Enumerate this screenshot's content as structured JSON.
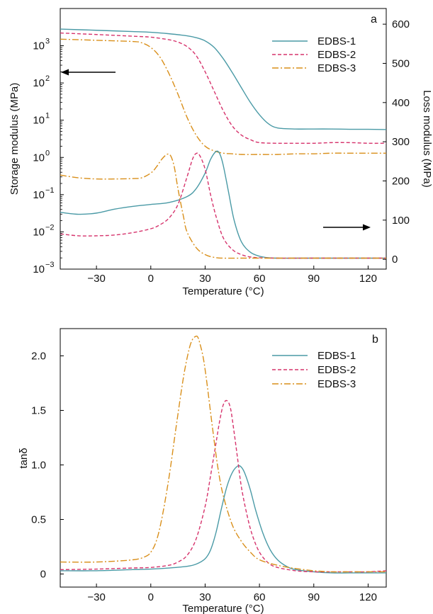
{
  "chart_data": [
    {
      "panel": "a",
      "type": "line",
      "xlabel": "Temperature (°C)",
      "ylabel_left": "Storage modulus (MPa)",
      "ylabel_right": "Loss modulus (MPa)",
      "xlim": [
        -50,
        130
      ],
      "ylim_left": [
        0.001,
        10000
      ],
      "yscale_left": "log",
      "ylim_right": [
        -25,
        640
      ],
      "xticks": [
        -30,
        0,
        30,
        60,
        90,
        120
      ],
      "xtick_labels": [
        "−30",
        "0",
        "30",
        "60",
        "90",
        "120"
      ],
      "yticks_left": [
        0.001,
        0.01,
        0.1,
        1,
        10,
        100,
        1000
      ],
      "ytick_labels_left": [
        "10",
        "10",
        "10",
        "10",
        "10",
        "10",
        "10"
      ],
      "ytick_exponents_left": [
        "−3",
        "−2",
        "−1",
        "0",
        "1",
        "2",
        "3"
      ],
      "yticks_right": [
        0,
        100,
        200,
        300,
        400,
        500,
        600
      ],
      "ytick_labels_right": [
        "0",
        "100",
        "200",
        "300",
        "400",
        "500",
        "600"
      ],
      "arrows": [
        {
          "points_to": "left axis",
          "direction": "left"
        },
        {
          "points_to": "right axis",
          "direction": "right"
        }
      ],
      "legend_placement": "top-right",
      "series": [
        {
          "name": "EDBS-1",
          "color": "#4a9aa6",
          "dash": "solid",
          "axis": "left",
          "kind": "storage",
          "x": [
            -50,
            -30,
            -10,
            0,
            10,
            20,
            25,
            30,
            35,
            40,
            45,
            50,
            55,
            60,
            65,
            70,
            80,
            90,
            100,
            110,
            120,
            130
          ],
          "y": [
            2800,
            2600,
            2400,
            2300,
            2100,
            1850,
            1650,
            1350,
            900,
            450,
            190,
            75,
            30,
            14,
            8,
            6.2,
            5.8,
            5.8,
            5.8,
            5.7,
            5.7,
            5.6
          ]
        },
        {
          "name": "EDBS-2",
          "color": "#d6336c",
          "dash": "dashed",
          "axis": "left",
          "kind": "storage",
          "x": [
            -50,
            -30,
            -10,
            0,
            10,
            15,
            20,
            25,
            30,
            35,
            40,
            45,
            50,
            55,
            60,
            70,
            80,
            90,
            100,
            110,
            120,
            130
          ],
          "y": [
            2200,
            2000,
            1800,
            1700,
            1450,
            1250,
            950,
            550,
            200,
            60,
            18,
            7,
            4,
            3,
            2.5,
            2.4,
            2.4,
            2.4,
            2.5,
            2.5,
            2.4,
            2.4
          ]
        },
        {
          "name": "EDBS-3",
          "color": "#d98f1a",
          "dash": "dashdot",
          "axis": "left",
          "kind": "storage",
          "x": [
            -50,
            -30,
            -10,
            -5,
            0,
            5,
            10,
            15,
            20,
            25,
            30,
            35,
            40,
            45,
            50,
            60,
            70,
            80,
            90,
            100,
            110,
            120,
            130
          ],
          "y": [
            1500,
            1400,
            1300,
            1200,
            900,
            500,
            180,
            50,
            12,
            4,
            2,
            1.5,
            1.3,
            1.25,
            1.2,
            1.2,
            1.2,
            1.25,
            1.25,
            1.3,
            1.3,
            1.3,
            1.3
          ]
        },
        {
          "name": "EDBS-1",
          "color": "#4a9aa6",
          "dash": "solid",
          "axis": "right",
          "kind": "loss",
          "x": [
            -50,
            -40,
            -30,
            -20,
            -10,
            0,
            10,
            20,
            25,
            30,
            33,
            36,
            38,
            40,
            43,
            46,
            50,
            55,
            60,
            65,
            70,
            80,
            100,
            130
          ],
          "y": [
            120,
            115,
            118,
            128,
            135,
            140,
            145,
            160,
            180,
            220,
            255,
            275,
            270,
            240,
            170,
            100,
            45,
            18,
            8,
            4,
            3,
            3,
            3,
            3
          ]
        },
        {
          "name": "EDBS-2",
          "color": "#d6336c",
          "dash": "dashed",
          "axis": "right",
          "kind": "loss",
          "x": [
            -50,
            -40,
            -30,
            -20,
            -10,
            0,
            5,
            10,
            15,
            20,
            23,
            25,
            27,
            30,
            33,
            36,
            40,
            45,
            50,
            55,
            60,
            70,
            90,
            130
          ],
          "y": [
            65,
            60,
            60,
            62,
            68,
            78,
            88,
            105,
            140,
            210,
            255,
            270,
            265,
            230,
            165,
            110,
            55,
            25,
            12,
            6,
            4,
            3,
            3,
            3
          ]
        },
        {
          "name": "EDBS-3",
          "color": "#d98f1a",
          "dash": "dashdot",
          "axis": "right",
          "kind": "loss",
          "x": [
            -50,
            -40,
            -30,
            -20,
            -10,
            -5,
            0,
            3,
            6,
            9,
            11,
            13,
            15,
            18,
            20,
            25,
            30,
            35,
            40,
            50,
            60,
            80,
            130
          ],
          "y": [
            215,
            208,
            205,
            205,
            206,
            208,
            220,
            235,
            255,
            268,
            264,
            235,
            180,
            110,
            70,
            30,
            12,
            5,
            3,
            3,
            3,
            3,
            3
          ]
        }
      ]
    },
    {
      "panel": "b",
      "type": "line",
      "xlabel": "Temperature (°C)",
      "ylabel": "tanδ",
      "xlim": [
        -50,
        130
      ],
      "ylim": [
        -0.12,
        2.25
      ],
      "xticks": [
        -30,
        0,
        30,
        60,
        90,
        120
      ],
      "xtick_labels": [
        "−30",
        "0",
        "30",
        "60",
        "90",
        "120"
      ],
      "yticks": [
        0,
        0.5,
        1.0,
        1.5,
        2.0
      ],
      "ytick_labels": [
        "0",
        "0.5",
        "1.0",
        "1.5",
        "2.0"
      ],
      "legend_placement": "top-right",
      "series": [
        {
          "name": "EDBS-1",
          "color": "#4a9aa6",
          "dash": "solid",
          "x": [
            -50,
            -30,
            -10,
            0,
            10,
            20,
            25,
            30,
            33,
            36,
            39,
            42,
            45,
            48,
            50,
            52,
            55,
            58,
            62,
            66,
            70,
            75,
            80,
            90,
            100,
            110,
            120,
            130
          ],
          "y": [
            0.03,
            0.03,
            0.04,
            0.045,
            0.055,
            0.07,
            0.09,
            0.14,
            0.22,
            0.38,
            0.6,
            0.8,
            0.93,
            0.99,
            0.98,
            0.92,
            0.77,
            0.58,
            0.37,
            0.22,
            0.13,
            0.07,
            0.04,
            0.02,
            0.01,
            0.01,
            0.01,
            0.01
          ]
        },
        {
          "name": "EDBS-2",
          "color": "#d6336c",
          "dash": "dashed",
          "x": [
            -50,
            -30,
            -10,
            0,
            10,
            15,
            20,
            25,
            30,
            33,
            36,
            38,
            40,
            42,
            44,
            46,
            48,
            50,
            53,
            56,
            60,
            65,
            70,
            80,
            90,
            100,
            110,
            120,
            130
          ],
          "y": [
            0.04,
            0.045,
            0.055,
            0.06,
            0.08,
            0.11,
            0.17,
            0.32,
            0.62,
            0.9,
            1.2,
            1.4,
            1.55,
            1.59,
            1.52,
            1.3,
            1.05,
            0.8,
            0.55,
            0.36,
            0.2,
            0.1,
            0.06,
            0.03,
            0.02,
            0.02,
            0.02,
            0.02,
            0.03
          ]
        },
        {
          "name": "EDBS-3",
          "color": "#d98f1a",
          "dash": "dashdot",
          "x": [
            -50,
            -30,
            -10,
            -3,
            0,
            3,
            6,
            10,
            14,
            18,
            21,
            23,
            25,
            26,
            27,
            29,
            31,
            34,
            37,
            40,
            45,
            50,
            55,
            60,
            70,
            80,
            90,
            100,
            110,
            120,
            130
          ],
          "y": [
            0.11,
            0.11,
            0.13,
            0.16,
            0.2,
            0.3,
            0.5,
            0.88,
            1.35,
            1.8,
            2.05,
            2.15,
            2.18,
            2.17,
            2.12,
            1.98,
            1.75,
            1.35,
            0.98,
            0.72,
            0.45,
            0.3,
            0.2,
            0.13,
            0.08,
            0.05,
            0.03,
            0.02,
            0.02,
            0.02,
            0.02
          ]
        }
      ]
    }
  ]
}
